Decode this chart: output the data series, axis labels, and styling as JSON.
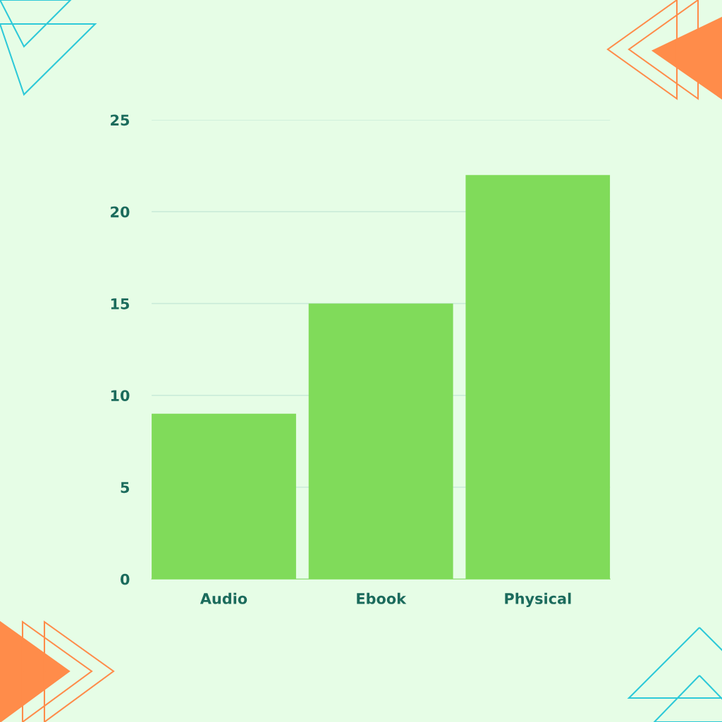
{
  "chart_data": {
    "type": "bar",
    "categories": [
      "Audio",
      "Ebook",
      "Physical"
    ],
    "values": [
      9,
      15,
      22
    ],
    "color": "#80db5a",
    "ylim": [
      0,
      25
    ],
    "yticks": [
      0,
      5,
      10,
      15,
      20,
      25
    ],
    "grid": "y",
    "legend": false
  }
}
